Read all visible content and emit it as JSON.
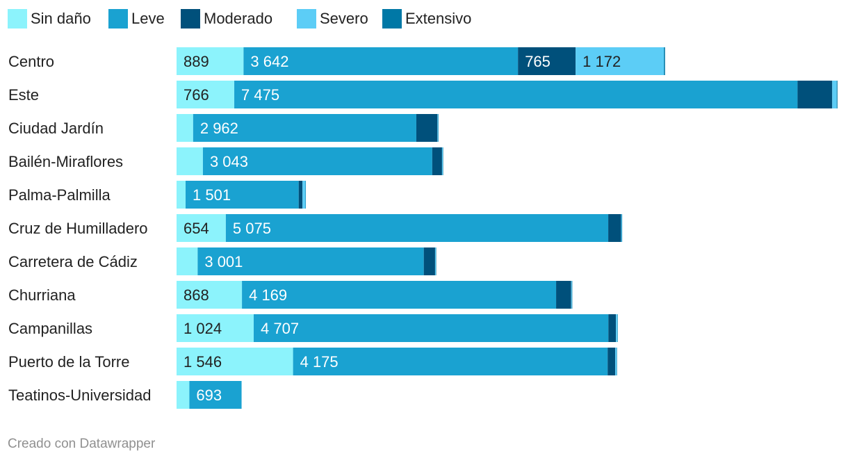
{
  "chart_data": {
    "type": "bar",
    "orientation": "horizontal",
    "stacked": true,
    "title": "",
    "categories": [
      "Centro",
      "Este",
      "Ciudad Jardín",
      "Bailén-Miraflores",
      "Palma-Palmilla",
      "Cruz de Humilladero",
      "Carretera de Cádiz",
      "Churriana",
      "Campanillas",
      "Puerto de la Torre",
      "Teatinos-Universidad"
    ],
    "series": [
      {
        "name": "Sin daño",
        "color": "#8cf3fc",
        "label_color": "#222222",
        "values": [
          889,
          766,
          220,
          350,
          120,
          654,
          280,
          868,
          1024,
          1546,
          170
        ],
        "labels": [
          "889",
          "766",
          "",
          "",
          "",
          "654",
          "",
          "868",
          "1 024",
          "1 546",
          ""
        ]
      },
      {
        "name": "Leve",
        "color": "#1aa2d1",
        "label_color": "#ffffff",
        "values": [
          3642,
          7475,
          2962,
          3043,
          1501,
          5075,
          3001,
          4169,
          4707,
          4175,
          693
        ],
        "labels": [
          "3 642",
          "7 475",
          "2 962",
          "3 043",
          "1 501",
          "5 075",
          "3 001",
          "4 169",
          "4 707",
          "4 175",
          "693"
        ]
      },
      {
        "name": "Moderado",
        "color": "#00507b",
        "label_color": "#ffffff",
        "values": [
          765,
          460,
          280,
          130,
          50,
          170,
          150,
          200,
          100,
          100,
          0
        ],
        "labels": [
          "765",
          "",
          "",
          "",
          "",
          "",
          "",
          "",
          "",
          "",
          ""
        ]
      },
      {
        "name": "Severo",
        "color": "#5ccdf6",
        "label_color": "#222222",
        "values": [
          1172,
          60,
          10,
          10,
          40,
          10,
          10,
          10,
          20,
          20,
          0
        ],
        "labels": [
          "1 172",
          "",
          "",
          "",
          "",
          "",
          "",
          "",
          "",
          "",
          ""
        ]
      },
      {
        "name": "Extensivo",
        "color": "#0078a6",
        "label_color": "#ffffff",
        "values": [
          15,
          10,
          5,
          5,
          5,
          5,
          5,
          5,
          5,
          5,
          0
        ],
        "labels": [
          "",
          "",
          "",
          "",
          "",
          "",
          "",
          "",
          "",
          "",
          ""
        ]
      }
    ],
    "xlim": [
      0,
      8800
    ],
    "grid": false,
    "legend_position": "top-left"
  },
  "footer": {
    "credit": "Creado con Datawrapper"
  }
}
